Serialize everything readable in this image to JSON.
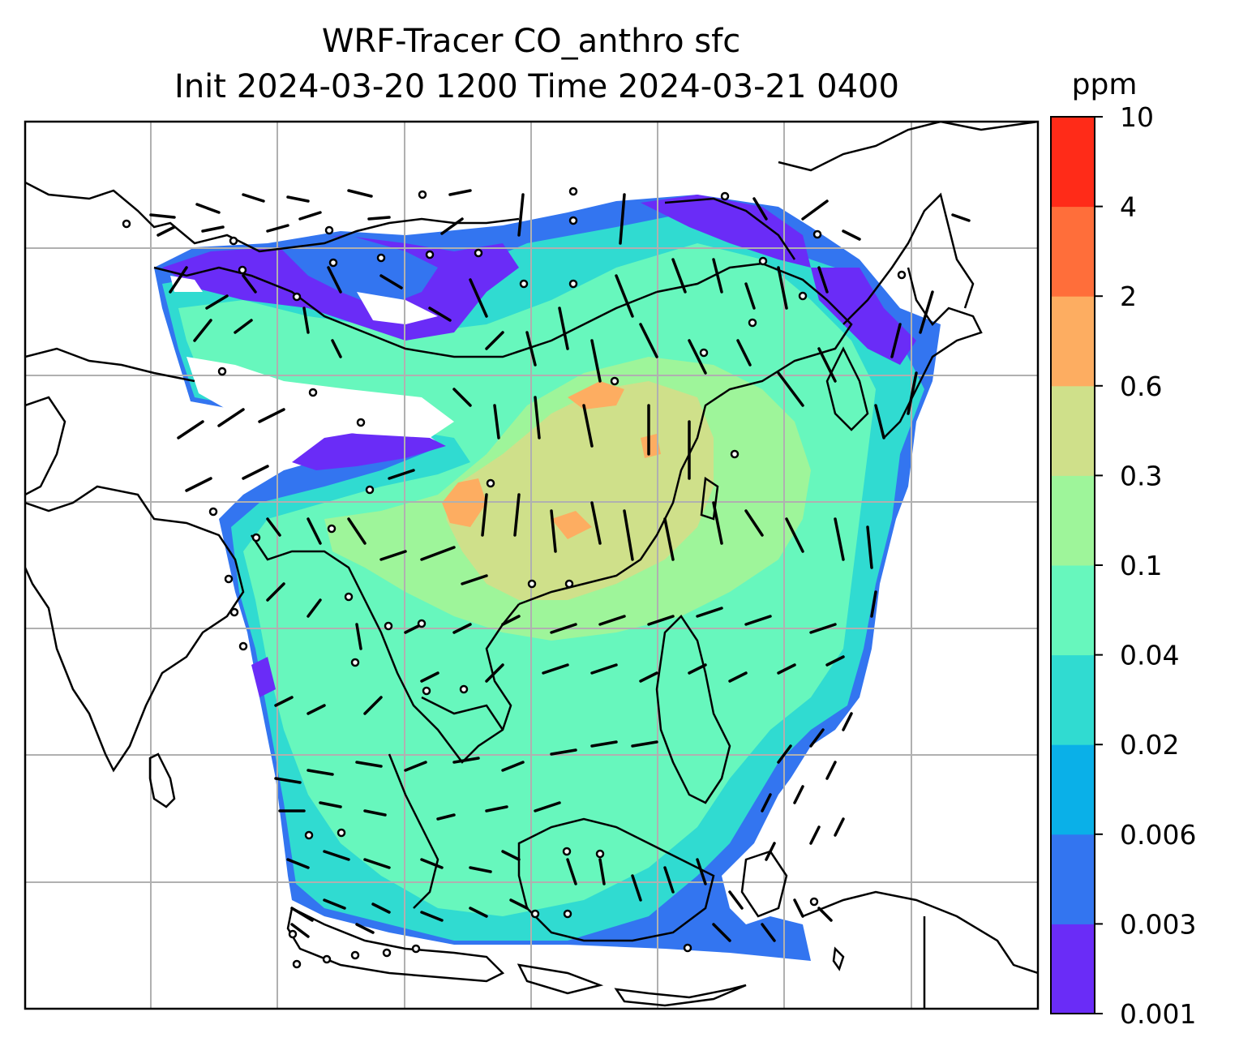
{
  "figure": {
    "title_line1": "WRF-Tracer CO_anthro sfc",
    "title_line2": "Init 2024-03-20 1200 Time 2024-03-21 0400"
  },
  "colorbar": {
    "unit": "ppm",
    "levels": [
      "0.001",
      "0.003",
      "0.006",
      "0.02",
      "0.04",
      "0.1",
      "0.3",
      "0.6",
      "2",
      "4",
      "10"
    ],
    "colors": [
      "#6a2cf7",
      "#3375f0",
      "#0ab0e8",
      "#30dbd1",
      "#67f7bd",
      "#9ef59a",
      "#cfe08a",
      "#fdad61",
      "#ff6e3a",
      "#ff2b18"
    ]
  },
  "map": {
    "projection": "lambert-like",
    "gridlines": true,
    "field": "CO_anthro",
    "level": "sfc",
    "overlay": "wind barbs"
  }
}
